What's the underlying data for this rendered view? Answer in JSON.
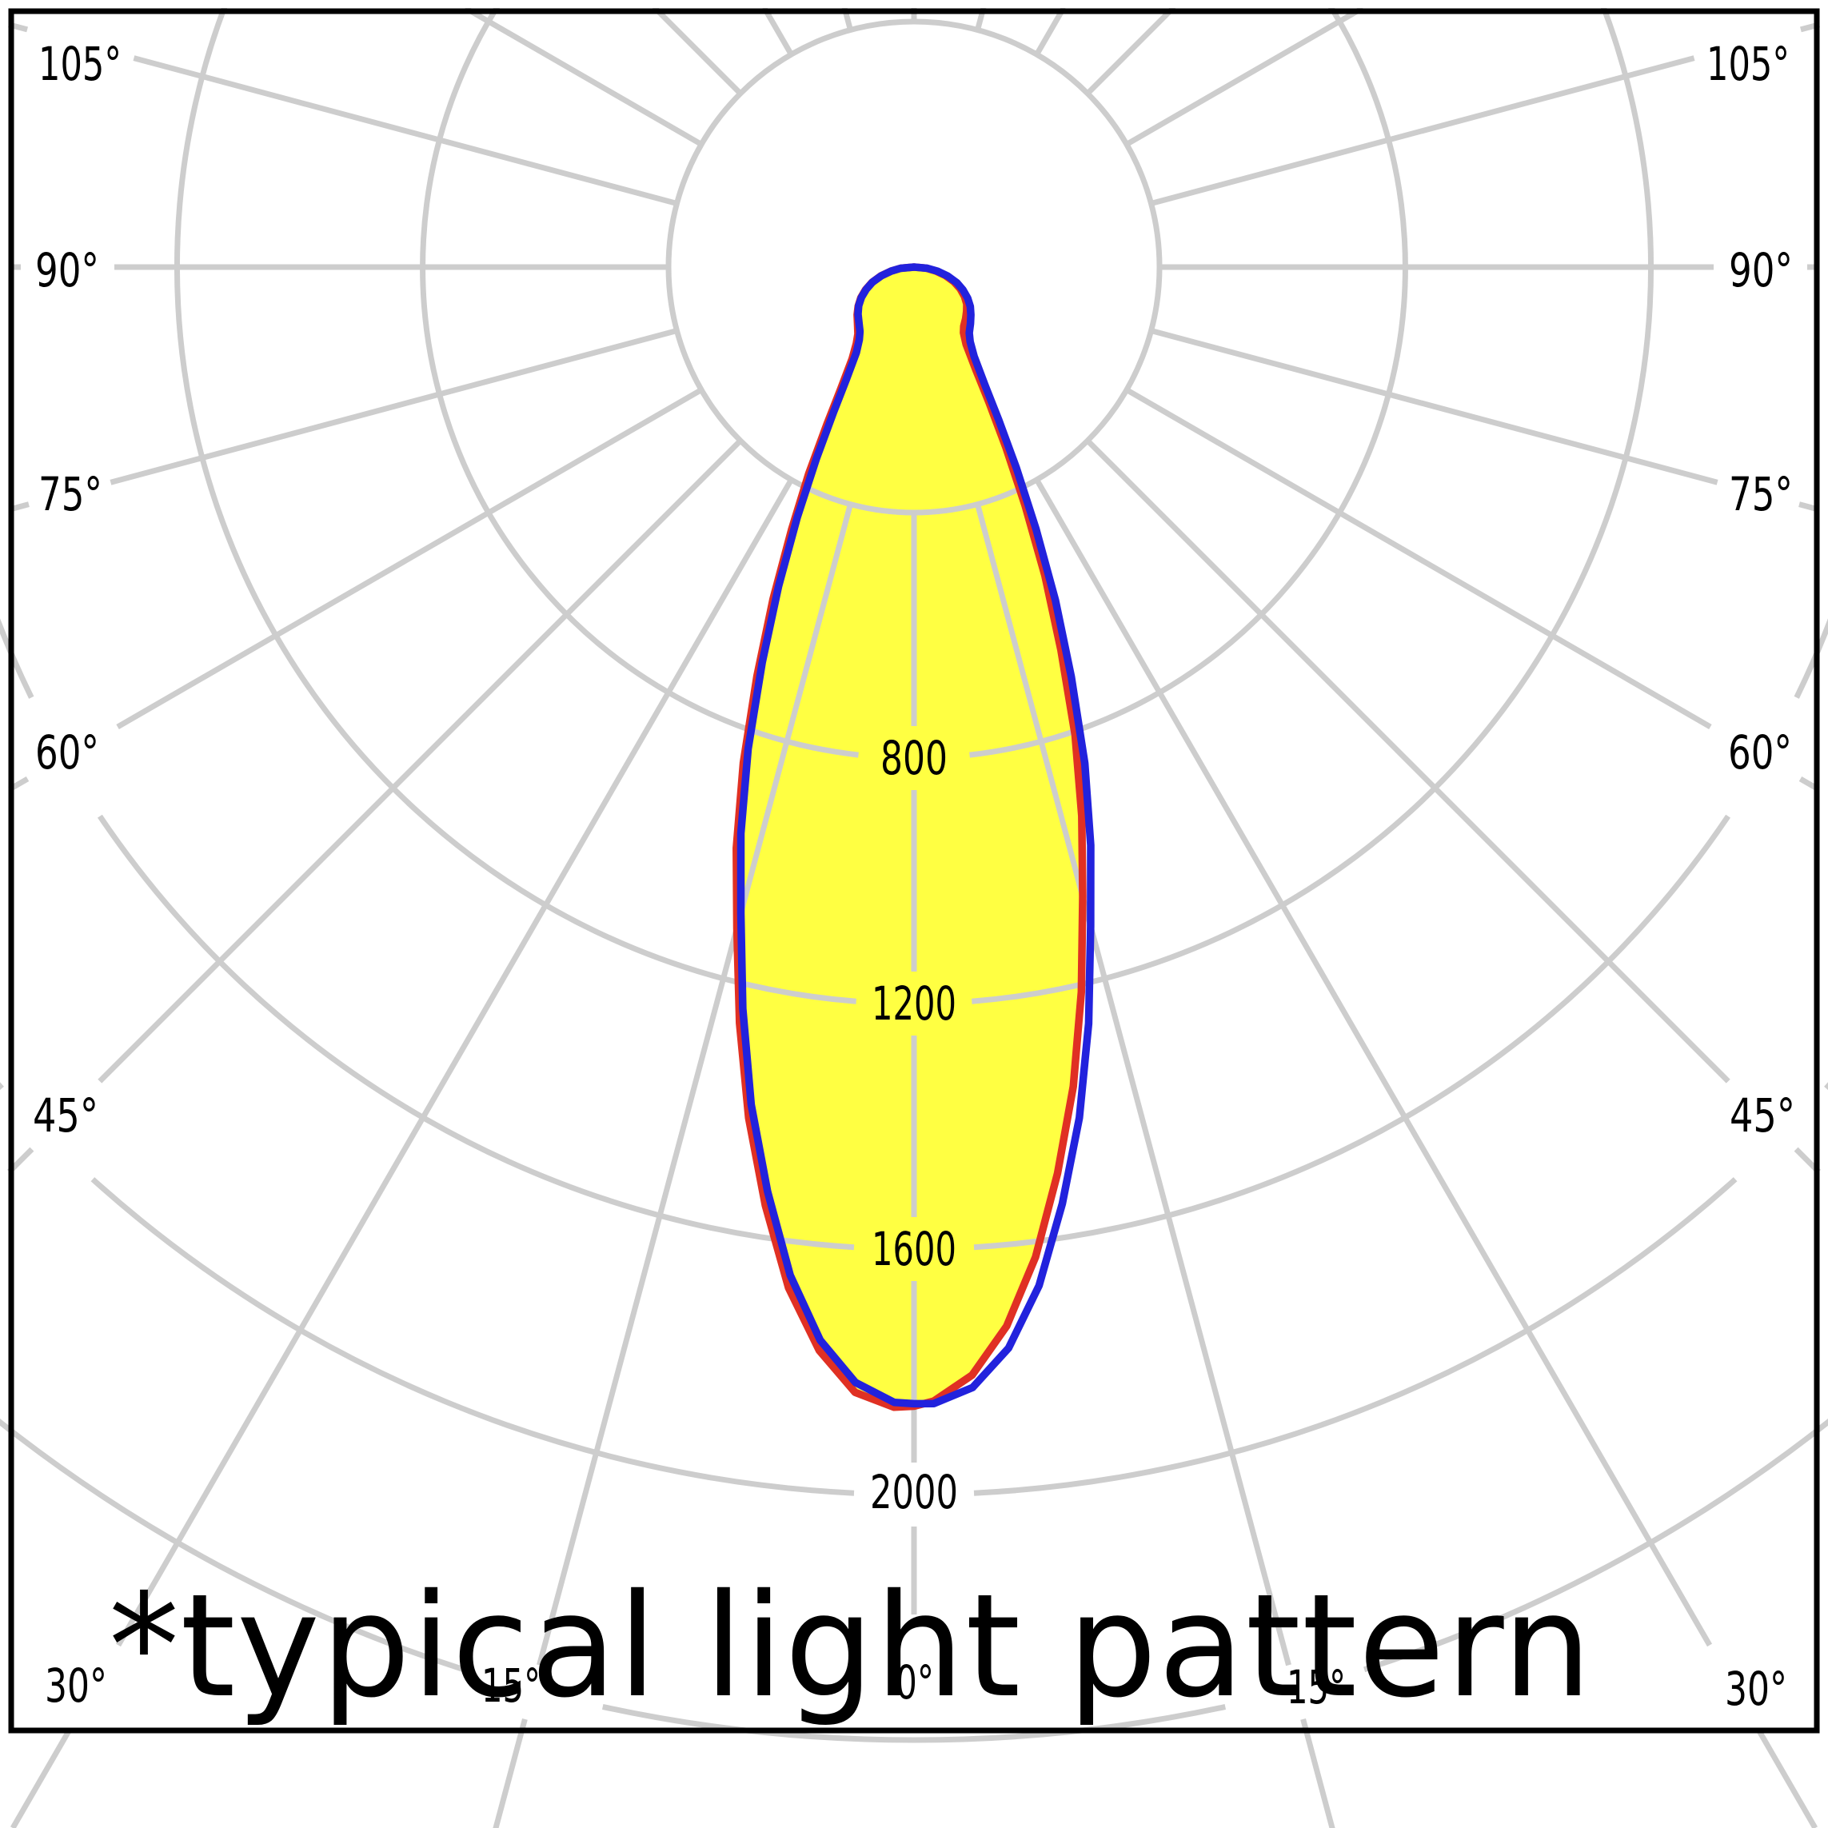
{
  "chart_data": {
    "type": "polar-photometric",
    "annotation": "*typical light pattern",
    "angle_unit": "°",
    "angle_gridline_step_deg": 15,
    "angle_tick_labels": {
      "left": [
        "105°",
        "90°",
        "75°",
        "60°",
        "45°"
      ],
      "right": [
        "105°",
        "90°",
        "75°",
        "60°",
        "45°"
      ],
      "bottom": [
        "30°",
        "15°",
        "0°",
        "15°",
        "30°"
      ]
    },
    "intensity_tick_labels": [
      "800",
      "1200",
      "1600",
      "2000"
    ],
    "radial_gridlines_cd": [
      400,
      800,
      1200,
      1600,
      2000,
      2400
    ],
    "max_intensity_cd": 1858,
    "beam_fill_follows": "red",
    "colors": {
      "beam_fill": "#ffff42",
      "curve_red": "#e03023",
      "curve_blue": "#2222dd",
      "grid": "#cdcdcd",
      "border": "#000000",
      "text": "#000000"
    },
    "series": [
      {
        "name": "red",
        "points": [
          [
            -90,
            0
          ],
          [
            -85,
            22
          ],
          [
            -80,
            38
          ],
          [
            -75,
            56
          ],
          [
            -70,
            73
          ],
          [
            -65,
            87
          ],
          [
            -60,
            100
          ],
          [
            -55,
            111
          ],
          [
            -50,
            121
          ],
          [
            -45,
            130
          ],
          [
            -40,
            142
          ],
          [
            -37,
            156
          ],
          [
            -34,
            180
          ],
          [
            -31,
            232
          ],
          [
            -29,
            292
          ],
          [
            -27,
            378
          ],
          [
            -25,
            472
          ],
          [
            -23,
            588
          ],
          [
            -21,
            714
          ],
          [
            -19,
            854
          ],
          [
            -17,
            990
          ],
          [
            -15,
            1115
          ],
          [
            -13,
            1264
          ],
          [
            -11,
            1412
          ],
          [
            -9,
            1548
          ],
          [
            -7,
            1676
          ],
          [
            -5,
            1772
          ],
          [
            -3,
            1836
          ],
          [
            -1,
            1858
          ],
          [
            0,
            1856
          ],
          [
            1,
            1848
          ],
          [
            3,
            1808
          ],
          [
            5,
            1732
          ],
          [
            7,
            1625
          ],
          [
            9,
            1495
          ],
          [
            11,
            1360
          ],
          [
            13,
            1212
          ],
          [
            15,
            1062
          ],
          [
            17,
            935
          ],
          [
            19,
            806
          ],
          [
            21,
            668
          ],
          [
            23,
            546
          ],
          [
            25,
            428
          ],
          [
            27,
            330
          ],
          [
            29,
            252
          ],
          [
            31,
            196
          ],
          [
            34,
            152
          ],
          [
            37,
            134
          ],
          [
            40,
            126
          ],
          [
            45,
            119
          ],
          [
            50,
            112
          ],
          [
            55,
            105
          ],
          [
            60,
            95
          ],
          [
            65,
            83
          ],
          [
            70,
            69
          ],
          [
            75,
            53
          ],
          [
            80,
            36
          ],
          [
            85,
            20
          ],
          [
            90,
            0
          ]
        ]
      },
      {
        "name": "blue",
        "points": [
          [
            -90,
            0
          ],
          [
            -85,
            22
          ],
          [
            -80,
            38
          ],
          [
            -75,
            55
          ],
          [
            -70,
            72
          ],
          [
            -65,
            86
          ],
          [
            -60,
            99
          ],
          [
            -55,
            110
          ],
          [
            -50,
            119
          ],
          [
            -45,
            127
          ],
          [
            -40,
            137
          ],
          [
            -37,
            148
          ],
          [
            -34,
            168
          ],
          [
            -31,
            215
          ],
          [
            -29,
            270
          ],
          [
            -27,
            350
          ],
          [
            -25,
            450
          ],
          [
            -23,
            565
          ],
          [
            -21,
            690
          ],
          [
            -19,
            830
          ],
          [
            -17,
            965
          ],
          [
            -15,
            1090
          ],
          [
            -13,
            1240
          ],
          [
            -11,
            1390
          ],
          [
            -9,
            1525
          ],
          [
            -7,
            1655
          ],
          [
            -5,
            1755
          ],
          [
            -3,
            1820
          ],
          [
            -1,
            1850
          ],
          [
            0,
            1852
          ],
          [
            1,
            1852
          ],
          [
            3,
            1828
          ],
          [
            5,
            1768
          ],
          [
            7,
            1672
          ],
          [
            9,
            1545
          ],
          [
            11,
            1412
          ],
          [
            13,
            1265
          ],
          [
            15,
            1112
          ],
          [
            17,
            985
          ],
          [
            19,
            855
          ],
          [
            21,
            715
          ],
          [
            23,
            590
          ],
          [
            25,
            470
          ],
          [
            27,
            368
          ],
          [
            29,
            285
          ],
          [
            31,
            225
          ],
          [
            34,
            175
          ],
          [
            37,
            152
          ],
          [
            40,
            140
          ],
          [
            45,
            130
          ],
          [
            50,
            121
          ],
          [
            55,
            112
          ],
          [
            60,
            101
          ],
          [
            65,
            88
          ],
          [
            70,
            74
          ],
          [
            75,
            57
          ],
          [
            80,
            39
          ],
          [
            85,
            22
          ],
          [
            90,
            0
          ]
        ]
      }
    ]
  }
}
